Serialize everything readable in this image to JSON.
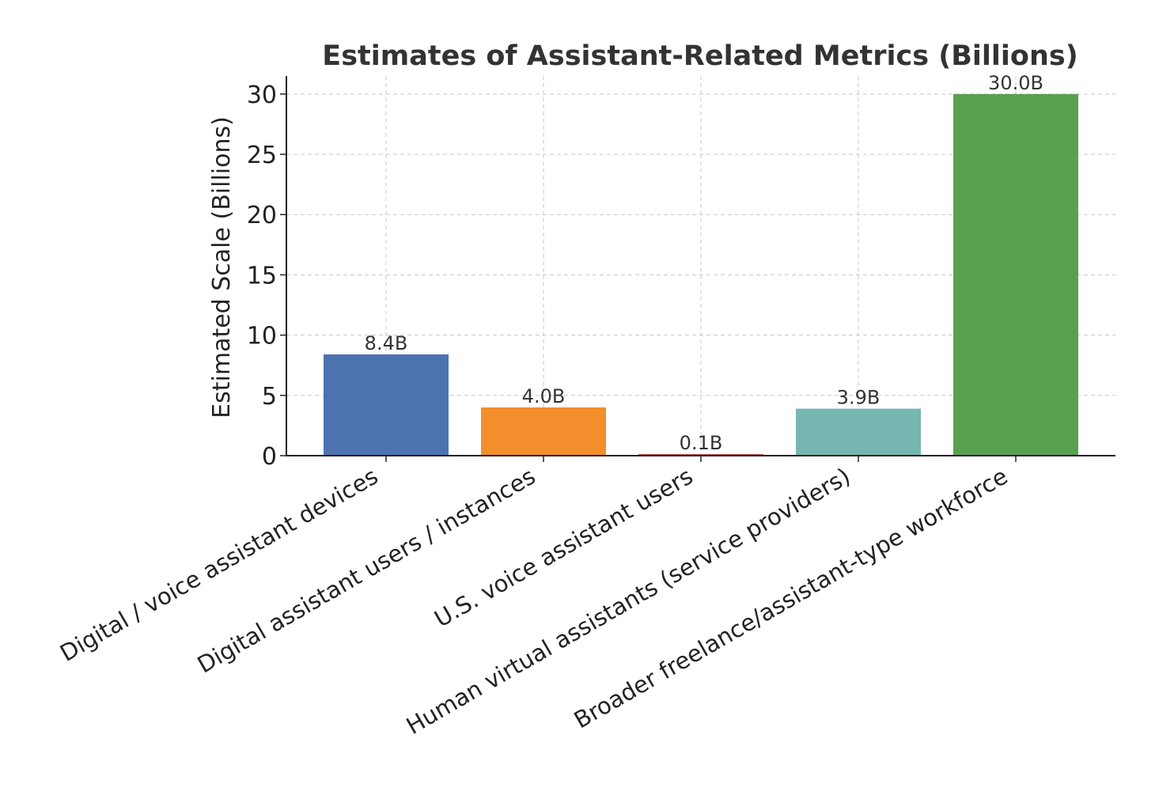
{
  "chart_data": {
    "type": "bar",
    "title": "Estimates of Assistant-Related Metrics (Billions)",
    "xlabel": "",
    "ylabel": "Estimated Scale (Billions)",
    "ylim": [
      0,
      31.5
    ],
    "yticks": [
      0,
      5,
      10,
      15,
      20,
      25,
      30
    ],
    "grid": true,
    "categories": [
      "Digital / voice assistant devices",
      "Digital assistant users / instances",
      "U.S. voice assistant users",
      "Human virtual assistants (service providers)",
      "Broader freelance/assistant-type workforce"
    ],
    "values": [
      8.4,
      4.0,
      0.1,
      3.9,
      30.0
    ],
    "data_labels": [
      "8.4B",
      "4.0B",
      "0.1B",
      "3.9B",
      "30.0B"
    ],
    "colors": [
      "#4c72b0",
      "#f28e2b",
      "#c44e52",
      "#76b7b2",
      "#59a14f"
    ]
  }
}
